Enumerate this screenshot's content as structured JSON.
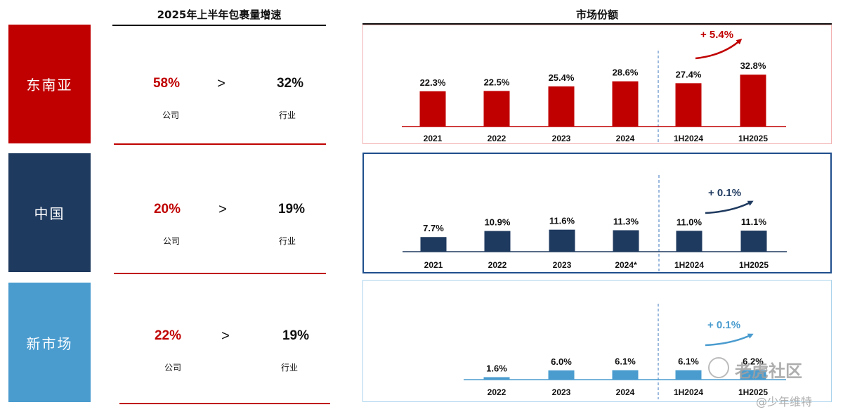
{
  "left_title": "2025年上半年包裹量增速",
  "right_title": "市场份额",
  "company_label": "公司",
  "industry_label": "行业",
  "gt_symbol": ">",
  "colors": {
    "sea": "#c00000",
    "china": "#1f3a5f",
    "new": "#4a9ccf"
  },
  "regions": [
    {
      "name": "东南亚",
      "company_growth": "58%",
      "industry_growth": "32%"
    },
    {
      "name": "中国",
      "company_growth": "20%",
      "industry_growth": "19%"
    },
    {
      "name": "新市场",
      "company_growth": "22%",
      "industry_growth": "19%"
    }
  ],
  "chart_data": [
    {
      "type": "bar",
      "region": "东南亚",
      "categories": [
        "2021",
        "2022",
        "2023",
        "2024",
        "1H2024",
        "1H2025"
      ],
      "values": [
        22.3,
        22.5,
        25.4,
        28.6,
        27.4,
        32.8
      ],
      "value_labels": [
        "22.3%",
        "22.5%",
        "25.4%",
        "28.6%",
        "27.4%",
        "32.8%"
      ],
      "annotation": "+ 5.4%",
      "ylim": [
        0,
        40
      ],
      "color": "#c00000"
    },
    {
      "type": "bar",
      "region": "中国",
      "categories": [
        "2021",
        "2022",
        "2023",
        "2024*",
        "1H2024",
        "1H2025"
      ],
      "values": [
        7.7,
        10.9,
        11.6,
        11.3,
        11.0,
        11.1
      ],
      "value_labels": [
        "7.7%",
        "10.9%",
        "11.6%",
        "11.3%",
        "11.0%",
        "11.1%"
      ],
      "annotation": "+ 0.1%",
      "ylim": [
        0,
        40
      ],
      "color": "#1f3a5f"
    },
    {
      "type": "bar",
      "region": "新市场",
      "categories": [
        "2022",
        "2023",
        "2024",
        "1H2024",
        "1H2025"
      ],
      "values": [
        1.6,
        6.0,
        6.1,
        6.1,
        6.2
      ],
      "value_labels": [
        "1.6%",
        "6.0%",
        "6.1%",
        "6.1%",
        "6.2%"
      ],
      "annotation": "+ 0.1%",
      "ylim": [
        0,
        40
      ],
      "color": "#4a9ccf"
    }
  ],
  "watermark": {
    "brand": "老虎社区",
    "author": "@少年维特"
  }
}
